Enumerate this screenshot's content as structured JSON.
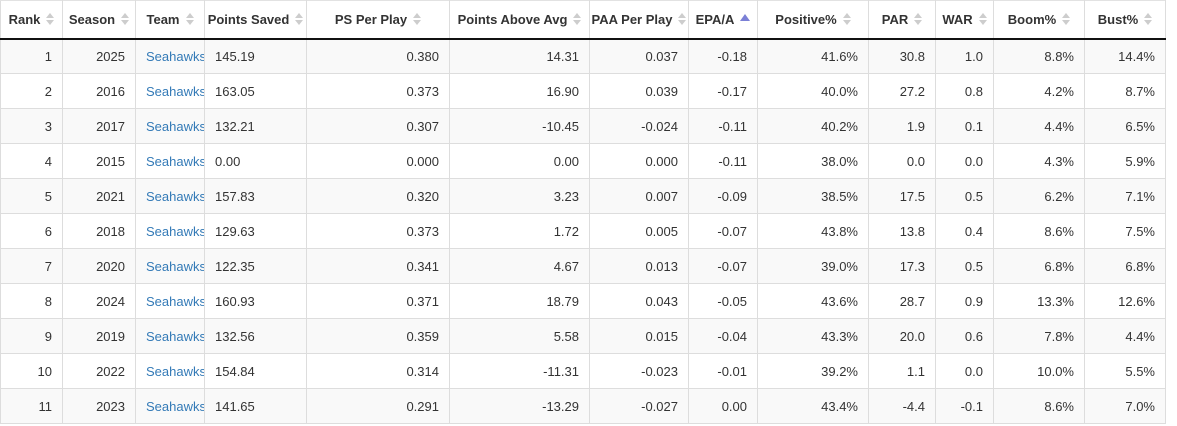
{
  "table": {
    "name": "season-defense-stats",
    "columns": [
      {
        "label": "Rank",
        "align": "right",
        "sort": "none"
      },
      {
        "label": "Season",
        "align": "right",
        "sort": "none"
      },
      {
        "label": "Team",
        "align": "left",
        "sort": "none"
      },
      {
        "label": "Points Saved",
        "align": "left",
        "sort": "none"
      },
      {
        "label": "PS Per Play",
        "align": "right",
        "sort": "none"
      },
      {
        "label": "Points Above Avg",
        "align": "right",
        "sort": "none"
      },
      {
        "label": "PAA Per Play",
        "align": "right",
        "sort": "none"
      },
      {
        "label": "EPA/A",
        "align": "right",
        "sort": "asc"
      },
      {
        "label": "Positive%",
        "align": "right",
        "sort": "none"
      },
      {
        "label": "PAR",
        "align": "right",
        "sort": "none"
      },
      {
        "label": "WAR",
        "align": "right",
        "sort": "none"
      },
      {
        "label": "Boom%",
        "align": "right",
        "sort": "none"
      },
      {
        "label": "Bust%",
        "align": "right",
        "sort": "none"
      }
    ],
    "link_column_index": 2,
    "rows": [
      [
        "1",
        "2025",
        "Seahawks",
        "145.19",
        "0.380",
        "14.31",
        "0.037",
        "-0.18",
        "41.6%",
        "30.8",
        "1.0",
        "8.8%",
        "14.4%"
      ],
      [
        "2",
        "2016",
        "Seahawks",
        "163.05",
        "0.373",
        "16.90",
        "0.039",
        "-0.17",
        "40.0%",
        "27.2",
        "0.8",
        "4.2%",
        "8.7%"
      ],
      [
        "3",
        "2017",
        "Seahawks",
        "132.21",
        "0.307",
        "-10.45",
        "-0.024",
        "-0.11",
        "40.2%",
        "1.9",
        "0.1",
        "4.4%",
        "6.5%"
      ],
      [
        "4",
        "2015",
        "Seahawks",
        "0.00",
        "0.000",
        "0.00",
        "0.000",
        "-0.11",
        "38.0%",
        "0.0",
        "0.0",
        "4.3%",
        "5.9%"
      ],
      [
        "5",
        "2021",
        "Seahawks",
        "157.83",
        "0.320",
        "3.23",
        "0.007",
        "-0.09",
        "38.5%",
        "17.5",
        "0.5",
        "6.2%",
        "7.1%"
      ],
      [
        "6",
        "2018",
        "Seahawks",
        "129.63",
        "0.373",
        "1.72",
        "0.005",
        "-0.07",
        "43.8%",
        "13.8",
        "0.4",
        "8.6%",
        "7.5%"
      ],
      [
        "7",
        "2020",
        "Seahawks",
        "122.35",
        "0.341",
        "4.67",
        "0.013",
        "-0.07",
        "39.0%",
        "17.3",
        "0.5",
        "6.8%",
        "6.8%"
      ],
      [
        "8",
        "2024",
        "Seahawks",
        "160.93",
        "0.371",
        "18.79",
        "0.043",
        "-0.05",
        "43.6%",
        "28.7",
        "0.9",
        "13.3%",
        "12.6%"
      ],
      [
        "9",
        "2019",
        "Seahawks",
        "132.56",
        "0.359",
        "5.58",
        "0.015",
        "-0.04",
        "43.3%",
        "20.0",
        "0.6",
        "7.8%",
        "4.4%"
      ],
      [
        "10",
        "2022",
        "Seahawks",
        "154.84",
        "0.314",
        "-11.31",
        "-0.023",
        "-0.01",
        "39.2%",
        "1.1",
        "0.0",
        "10.0%",
        "5.5%"
      ],
      [
        "11",
        "2023",
        "Seahawks",
        "141.65",
        "0.291",
        "-13.29",
        "-0.027",
        "0.00",
        "43.4%",
        "-4.4",
        "-0.1",
        "8.6%",
        "7.0%"
      ]
    ]
  },
  "colors": {
    "row_stripe": "#f9f9f9",
    "cell_border": "#dddddd",
    "header_bottom_border": "#111111",
    "active_sort_arrow": "#7b80d6",
    "inactive_sort_arrow": "#cdcdcd",
    "team_link": "#337ab7",
    "text": "#333333"
  }
}
